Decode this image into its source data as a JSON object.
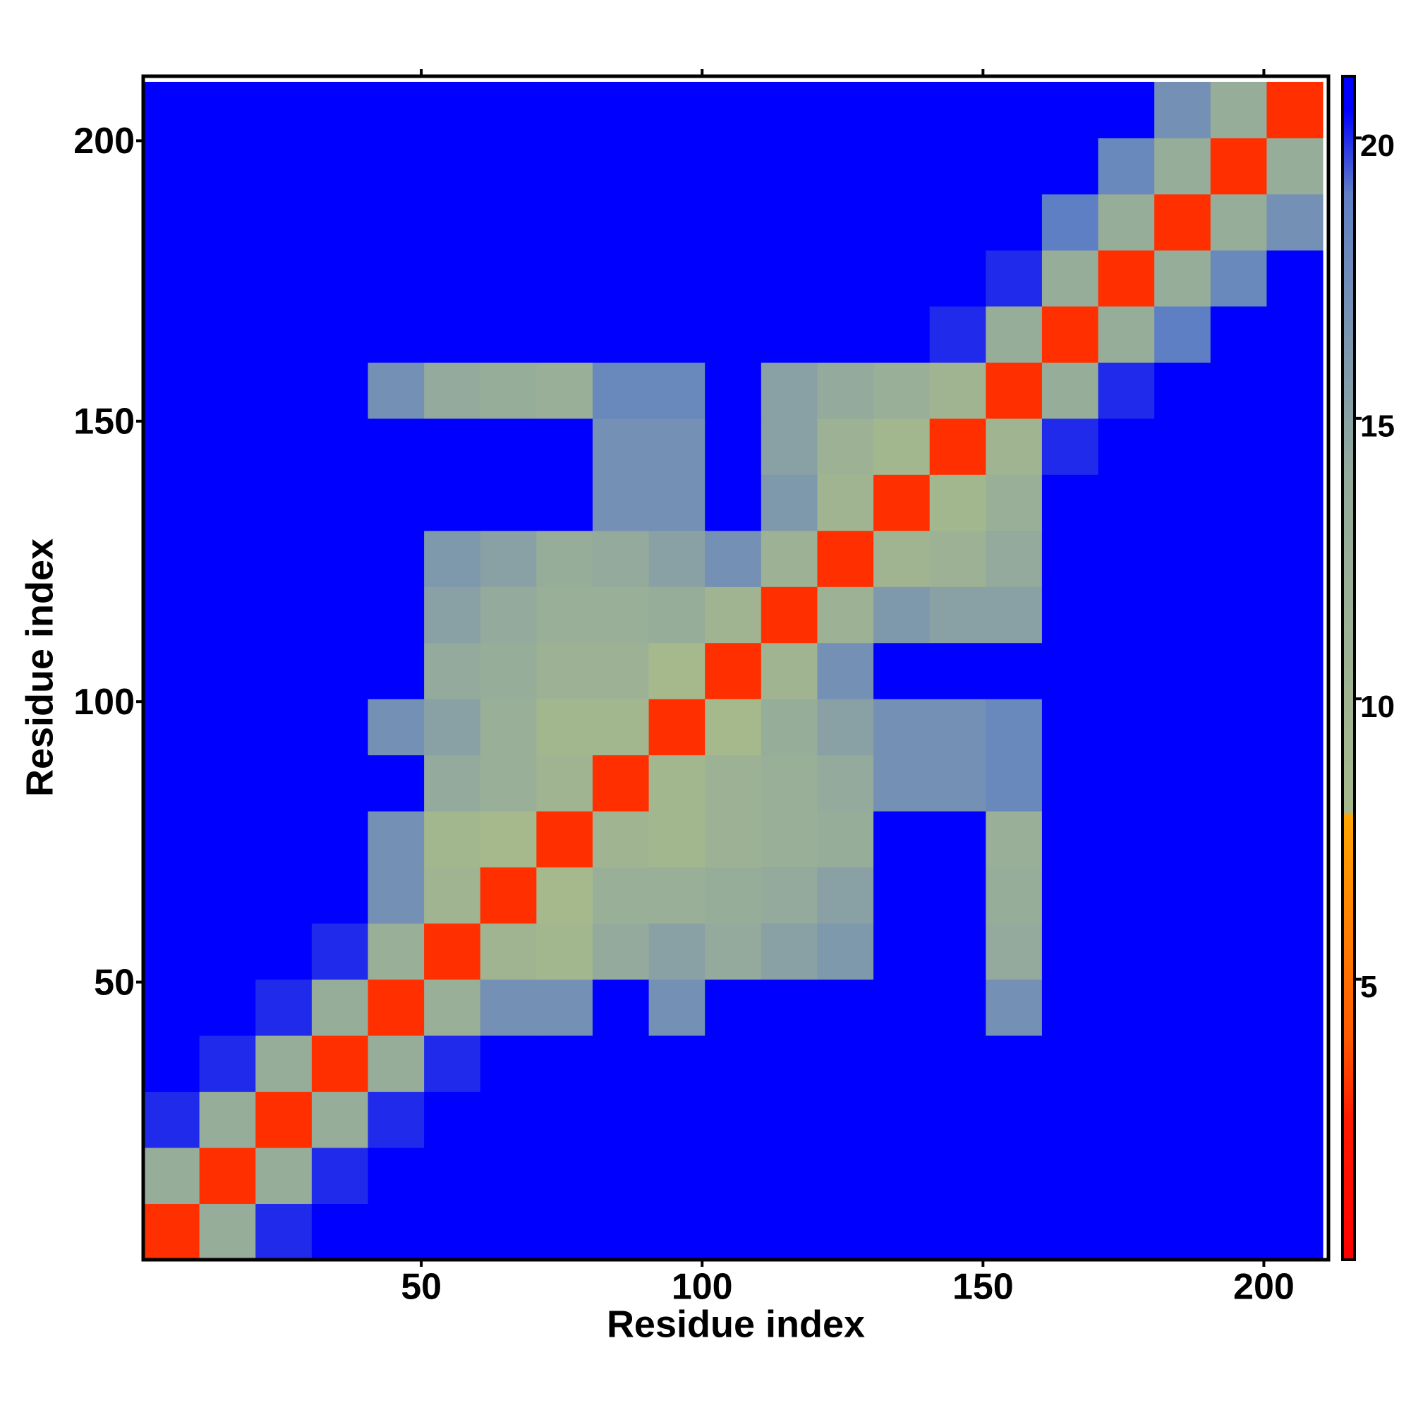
{
  "chart_data": {
    "type": "heatmap",
    "x_label": "Residue index",
    "y_label": "Residue index",
    "x": [
      5.5,
      15.5,
      25.5,
      35.5,
      45.5,
      55.5,
      65.5,
      75.5,
      85.5,
      95.5,
      105.5,
      115.5,
      125.5,
      135.5,
      145.5,
      155.5,
      165.5,
      175.5,
      185.5,
      195.5,
      205.5
    ],
    "y": [
      5.5,
      15.5,
      25.5,
      35.5,
      45.5,
      55.5,
      65.5,
      75.5,
      85.5,
      95.5,
      105.5,
      115.5,
      125.5,
      135.5,
      145.5,
      155.5,
      165.5,
      175.5,
      185.5,
      195.5,
      205.5
    ],
    "z": [
      [
        3,
        13,
        20,
        21,
        21,
        21,
        21,
        21,
        21,
        21,
        21,
        21,
        21,
        21,
        21,
        21,
        21,
        21,
        21,
        21,
        21
      ],
      [
        13,
        3,
        13,
        20,
        21,
        21,
        21,
        21,
        21,
        21,
        21,
        21,
        21,
        21,
        21,
        21,
        21,
        21,
        21,
        21,
        21
      ],
      [
        20,
        13,
        3,
        13,
        20,
        21,
        21,
        21,
        21,
        21,
        21,
        21,
        21,
        21,
        21,
        21,
        21,
        21,
        21,
        21,
        21
      ],
      [
        21,
        20,
        13,
        3,
        13,
        20,
        21,
        21,
        21,
        21,
        21,
        21,
        21,
        21,
        21,
        21,
        21,
        21,
        21,
        21,
        21
      ],
      [
        21,
        21,
        20,
        13,
        3,
        12,
        17,
        17,
        21,
        17,
        21,
        21,
        21,
        21,
        21,
        17,
        21,
        21,
        21,
        21,
        21
      ],
      [
        21,
        21,
        21,
        20,
        12,
        3,
        10,
        9,
        14,
        15,
        14,
        15,
        16,
        21,
        21,
        14,
        21,
        21,
        21,
        21,
        21
      ],
      [
        21,
        21,
        21,
        21,
        17,
        10,
        3,
        8,
        12,
        12,
        13,
        14,
        15,
        21,
        21,
        13,
        21,
        21,
        21,
        21,
        21
      ],
      [
        21,
        21,
        21,
        21,
        17,
        9,
        8,
        3,
        10,
        9,
        11,
        12,
        13,
        21,
        21,
        12,
        21,
        21,
        21,
        21,
        21
      ],
      [
        21,
        21,
        21,
        21,
        21,
        14,
        12,
        10,
        3,
        9,
        11,
        12,
        14,
        17,
        17,
        18,
        21,
        21,
        21,
        21,
        21
      ],
      [
        21,
        21,
        21,
        21,
        17,
        15,
        12,
        9,
        9,
        3,
        8,
        13,
        15,
        17,
        17,
        18,
        21,
        21,
        21,
        21,
        21
      ],
      [
        21,
        21,
        21,
        21,
        21,
        14,
        13,
        11,
        11,
        8,
        3,
        10,
        17,
        21,
        21,
        21,
        21,
        21,
        21,
        21,
        21
      ],
      [
        21,
        21,
        21,
        21,
        21,
        15,
        14,
        12,
        12,
        13,
        10,
        3,
        11,
        16,
        15,
        15,
        21,
        21,
        21,
        21,
        21
      ],
      [
        21,
        21,
        21,
        21,
        21,
        16,
        15,
        13,
        14,
        15,
        17,
        11,
        3,
        10,
        11,
        14,
        21,
        21,
        21,
        21,
        21
      ],
      [
        21,
        21,
        21,
        21,
        21,
        21,
        21,
        21,
        17,
        17,
        21,
        16,
        10,
        3,
        9,
        12,
        21,
        21,
        21,
        21,
        21
      ],
      [
        21,
        21,
        21,
        21,
        21,
        21,
        21,
        21,
        17,
        17,
        21,
        15,
        11,
        9,
        3,
        10,
        20,
        21,
        21,
        21,
        21
      ],
      [
        21,
        21,
        21,
        21,
        17,
        14,
        13,
        12,
        18,
        18,
        21,
        15,
        14,
        12,
        10,
        3,
        13,
        20,
        21,
        21,
        21
      ],
      [
        21,
        21,
        21,
        21,
        21,
        21,
        21,
        21,
        21,
        21,
        21,
        21,
        21,
        21,
        20,
        13,
        3,
        13,
        19,
        21,
        21
      ],
      [
        21,
        21,
        21,
        21,
        21,
        21,
        21,
        21,
        21,
        21,
        21,
        21,
        21,
        21,
        21,
        20,
        13,
        3,
        13,
        18,
        21
      ],
      [
        21,
        21,
        21,
        21,
        21,
        21,
        21,
        21,
        21,
        21,
        21,
        21,
        21,
        21,
        21,
        21,
        19,
        13,
        3,
        13,
        17
      ],
      [
        21,
        21,
        21,
        21,
        21,
        21,
        21,
        21,
        21,
        21,
        21,
        21,
        21,
        21,
        21,
        21,
        21,
        18,
        13,
        3,
        13
      ],
      [
        21,
        21,
        21,
        21,
        21,
        21,
        21,
        21,
        21,
        21,
        21,
        21,
        21,
        21,
        21,
        21,
        21,
        21,
        17,
        13,
        3
      ]
    ],
    "xlim": [
      0.5,
      211.5
    ],
    "ylim": [
      0.5,
      211.5
    ],
    "xticks": [
      50,
      100,
      150,
      200
    ],
    "yticks": [
      50,
      100,
      150,
      200
    ],
    "clim": [
      0,
      21.1
    ],
    "cticks": [
      5,
      10,
      15,
      20
    ],
    "colorscale": [
      [
        0,
        "#ff0000"
      ],
      [
        2.5,
        "#ff1a00"
      ],
      [
        4,
        "#ff5a00"
      ],
      [
        7.9,
        "#ffa500"
      ],
      [
        8,
        "#a6b98c"
      ],
      [
        14,
        "#93aa9c"
      ],
      [
        19,
        "#5f7fc4"
      ],
      [
        20.5,
        "#0000ff"
      ]
    ]
  }
}
